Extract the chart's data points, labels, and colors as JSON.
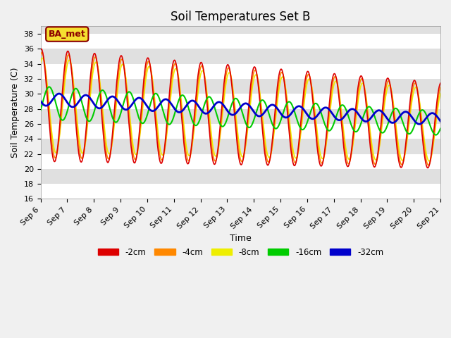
{
  "title": "Soil Temperatures Set B",
  "xlabel": "Time",
  "ylabel": "Soil Temperature (C)",
  "ylim": [
    16,
    39
  ],
  "xlim": [
    0,
    15
  ],
  "x_tick_labels": [
    "Sep 6",
    "Sep 7",
    "Sep 8",
    "Sep 9",
    "Sep 10",
    "Sep 11",
    "Sep 12",
    "Sep 13",
    "Sep 14",
    "Sep 15",
    "Sep 16",
    "Sep 17",
    "Sep 18",
    "Sep 19",
    "Sep 20",
    "Sep 21"
  ],
  "legend_labels": [
    "-2cm",
    "-4cm",
    "-8cm",
    "-16cm",
    "-32cm"
  ],
  "legend_colors": [
    "#dd0000",
    "#ff8800",
    "#eeee00",
    "#00cc00",
    "#0000cc"
  ],
  "line_widths": [
    1.2,
    1.2,
    1.2,
    1.5,
    2.0
  ],
  "annotation_text": "BA_met",
  "bg_color": "#f0f0f0",
  "band_colors": [
    "#ffffff",
    "#e0e0e0"
  ],
  "title_fontsize": 12,
  "axis_label_fontsize": 9,
  "tick_fontsize": 8
}
